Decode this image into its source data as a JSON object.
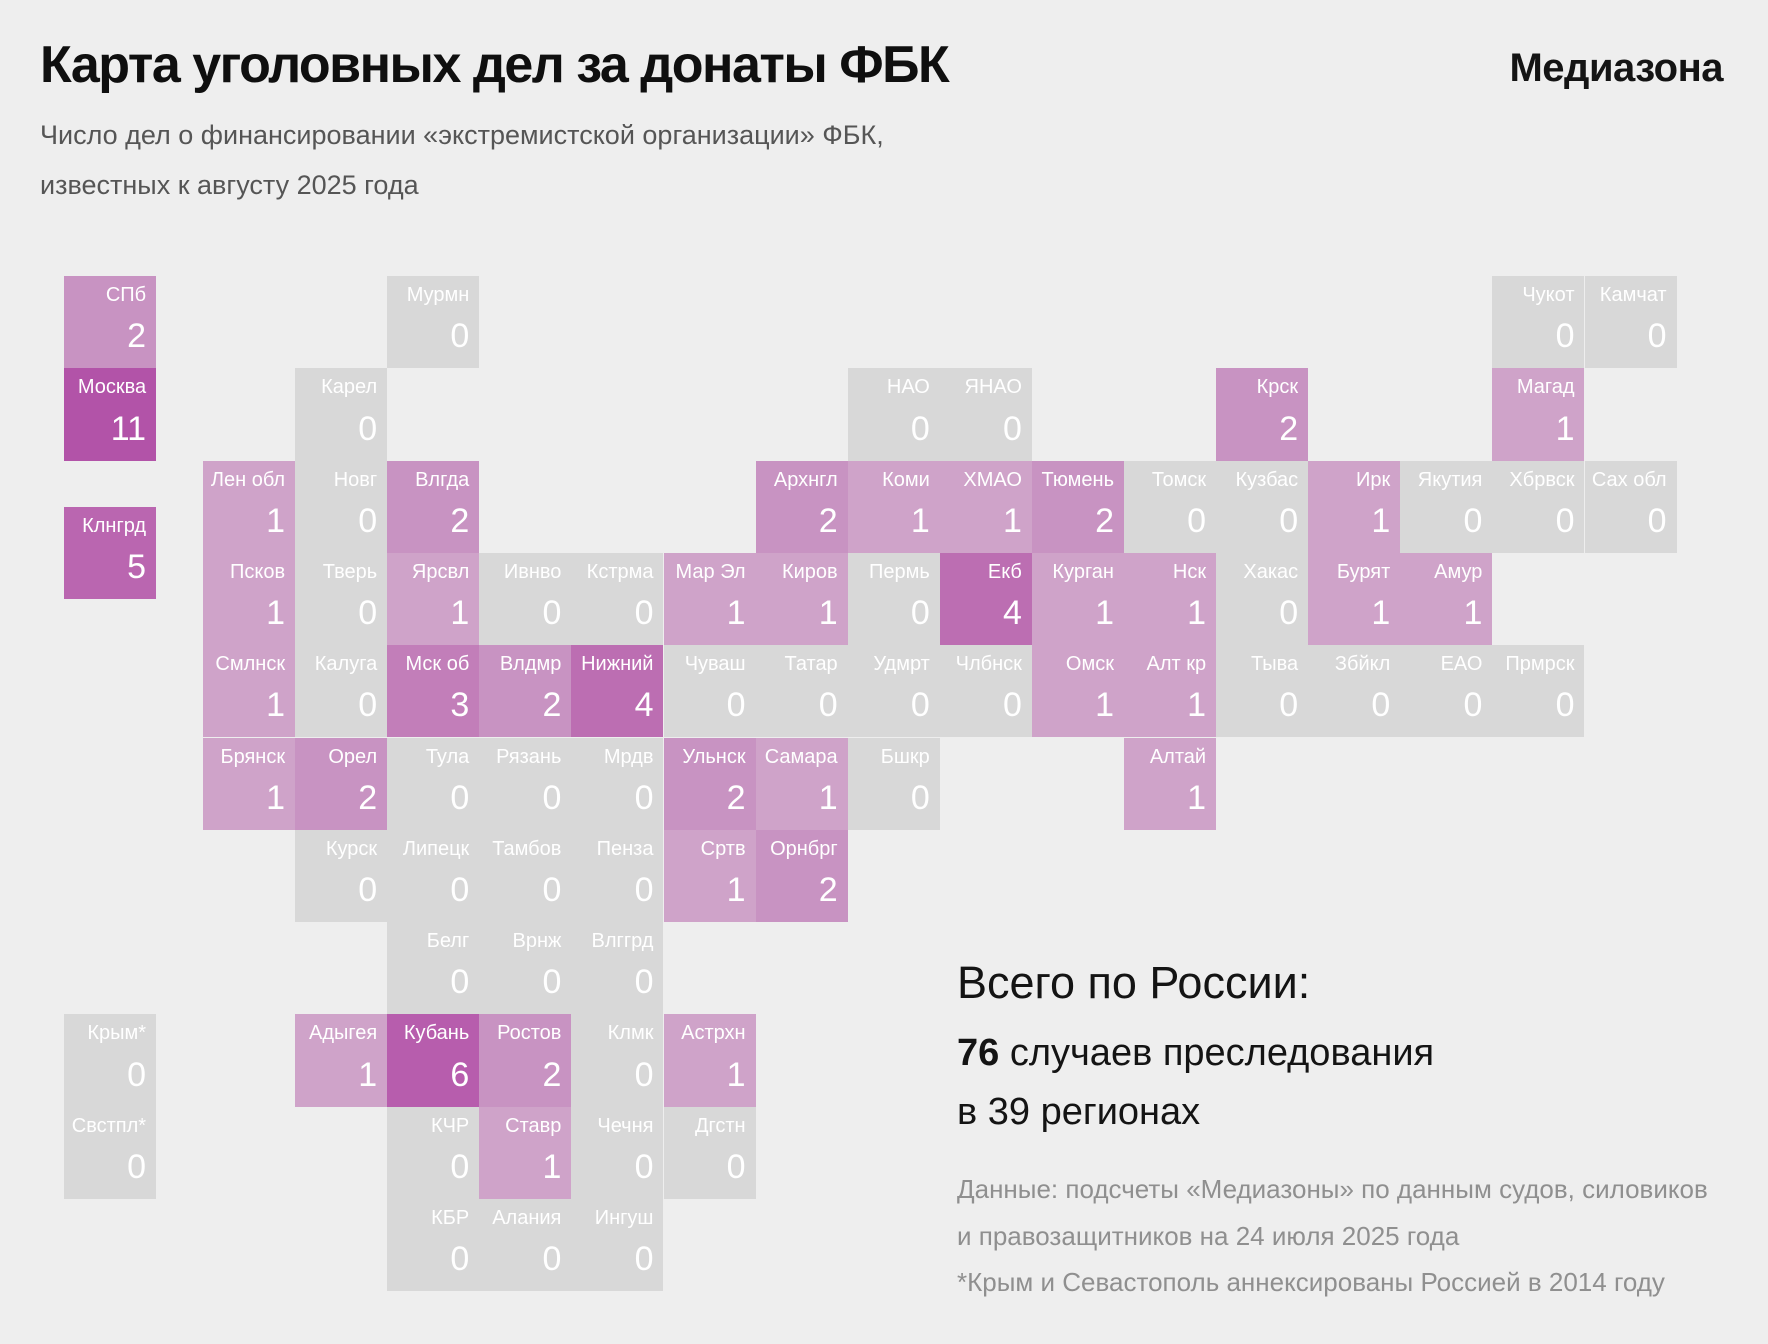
{
  "header": {
    "title": "Карта уголовных дел за донаты ФБК",
    "logo": "Медиазона"
  },
  "subtitle": {
    "line1": "Число дел о финансировании «экстремистской организации» ФБК,",
    "line2": "известных к августу 2025 года"
  },
  "summary": {
    "heading": "Всего по России:",
    "total": "76",
    "total_suffix": " случаев преследования",
    "line2": "в 39 регионах"
  },
  "footnotes": [
    "Данные: подсчеты «Медиазоны» по данным судов, силовиков",
    "и правозащитников на 24 июля 2025 года",
    "*Крым и Севастополь аннексированы Россией в 2014 году"
  ],
  "colors": {
    "background": "#eeeeee",
    "tile_text": "#ffffff",
    "title_text": "#0f0f0f",
    "subtitle_text": "#555555",
    "footnote_text": "#8f8f8f"
  },
  "chart_data": {
    "type": "heatmap",
    "subtype": "tile-grid-cartogram",
    "title": "Карта уголовных дел за донаты ФБК",
    "subtitle": "Число дел о финансировании «экстремистской организации» ФБК, известных к августу 2025 года",
    "total_cases": 76,
    "regions_with_cases": 39,
    "value_color_scale": {
      "0": "#d8d8d8",
      "1": "#cfa3c9",
      "2": "#c893c2",
      "3": "#c27eb9",
      "4": "#bc6eb2",
      "5": "#ba66b0",
      "6": "#b75dad",
      "11": "#b253a8"
    },
    "tiles": [
      {
        "label": "СПб",
        "value": 2,
        "col": "L",
        "row": 0
      },
      {
        "label": "Мурмн",
        "value": 0,
        "col": 2,
        "row": 0
      },
      {
        "label": "Чукот",
        "value": 0,
        "col": 14,
        "row": 0
      },
      {
        "label": "Камчат",
        "value": 0,
        "col": 15,
        "row": 0
      },
      {
        "label": "Москва",
        "value": 11,
        "col": "L",
        "row": 1
      },
      {
        "label": "Карел",
        "value": 0,
        "col": 1,
        "row": 1
      },
      {
        "label": "НАО",
        "value": 0,
        "col": 7,
        "row": 1
      },
      {
        "label": "ЯНАО",
        "value": 0,
        "col": 8,
        "row": 1
      },
      {
        "label": "Крск",
        "value": 2,
        "col": 11,
        "row": 1
      },
      {
        "label": "Магад",
        "value": 1,
        "col": 14,
        "row": 1
      },
      {
        "label": "Лен обл",
        "value": 1,
        "col": 0,
        "row": 2
      },
      {
        "label": "Новг",
        "value": 0,
        "col": 1,
        "row": 2
      },
      {
        "label": "Влгда",
        "value": 2,
        "col": 2,
        "row": 2
      },
      {
        "label": "Архнгл",
        "value": 2,
        "col": 6,
        "row": 2
      },
      {
        "label": "Коми",
        "value": 1,
        "col": 7,
        "row": 2
      },
      {
        "label": "ХМАО",
        "value": 1,
        "col": 8,
        "row": 2
      },
      {
        "label": "Тюмень",
        "value": 2,
        "col": 9,
        "row": 2
      },
      {
        "label": "Томск",
        "value": 0,
        "col": 10,
        "row": 2
      },
      {
        "label": "Кузбас",
        "value": 0,
        "col": 11,
        "row": 2
      },
      {
        "label": "Ирк",
        "value": 1,
        "col": 12,
        "row": 2
      },
      {
        "label": "Якутия",
        "value": 0,
        "col": 13,
        "row": 2
      },
      {
        "label": "Хбрвск",
        "value": 0,
        "col": 14,
        "row": 2
      },
      {
        "label": "Сах обл",
        "value": 0,
        "col": 15,
        "row": 2
      },
      {
        "label": "Клнгрд",
        "value": 5,
        "col": "L",
        "row": 2.5
      },
      {
        "label": "Псков",
        "value": 1,
        "col": 0,
        "row": 3
      },
      {
        "label": "Тверь",
        "value": 0,
        "col": 1,
        "row": 3
      },
      {
        "label": "Ярсвл",
        "value": 1,
        "col": 2,
        "row": 3
      },
      {
        "label": "Ивнво",
        "value": 0,
        "col": 3,
        "row": 3
      },
      {
        "label": "Кстрма",
        "value": 0,
        "col": 4,
        "row": 3
      },
      {
        "label": "Мар Эл",
        "value": 1,
        "col": 5,
        "row": 3
      },
      {
        "label": "Киров",
        "value": 1,
        "col": 6,
        "row": 3
      },
      {
        "label": "Пермь",
        "value": 0,
        "col": 7,
        "row": 3
      },
      {
        "label": "Екб",
        "value": 4,
        "col": 8,
        "row": 3
      },
      {
        "label": "Курган",
        "value": 1,
        "col": 9,
        "row": 3
      },
      {
        "label": "Нск",
        "value": 1,
        "col": 10,
        "row": 3
      },
      {
        "label": "Хакас",
        "value": 0,
        "col": 11,
        "row": 3
      },
      {
        "label": "Бурят",
        "value": 1,
        "col": 12,
        "row": 3
      },
      {
        "label": "Амур",
        "value": 1,
        "col": 13,
        "row": 3
      },
      {
        "label": "Смлнск",
        "value": 1,
        "col": 0,
        "row": 4
      },
      {
        "label": "Калуга",
        "value": 0,
        "col": 1,
        "row": 4
      },
      {
        "label": "Мск об",
        "value": 3,
        "col": 2,
        "row": 4
      },
      {
        "label": "Влдмр",
        "value": 2,
        "col": 3,
        "row": 4
      },
      {
        "label": "Нижний",
        "value": 4,
        "col": 4,
        "row": 4
      },
      {
        "label": "Чуваш",
        "value": 0,
        "col": 5,
        "row": 4
      },
      {
        "label": "Татар",
        "value": 0,
        "col": 6,
        "row": 4
      },
      {
        "label": "Удмрт",
        "value": 0,
        "col": 7,
        "row": 4
      },
      {
        "label": "Члбнск",
        "value": 0,
        "col": 8,
        "row": 4
      },
      {
        "label": "Омск",
        "value": 1,
        "col": 9,
        "row": 4
      },
      {
        "label": "Алт кр",
        "value": 1,
        "col": 10,
        "row": 4
      },
      {
        "label": "Тыва",
        "value": 0,
        "col": 11,
        "row": 4
      },
      {
        "label": "Збйкл",
        "value": 0,
        "col": 12,
        "row": 4
      },
      {
        "label": "ЕАО",
        "value": 0,
        "col": 13,
        "row": 4
      },
      {
        "label": "Прмрск",
        "value": 0,
        "col": 14,
        "row": 4
      },
      {
        "label": "Брянск",
        "value": 1,
        "col": 0,
        "row": 5
      },
      {
        "label": "Орел",
        "value": 2,
        "col": 1,
        "row": 5
      },
      {
        "label": "Тула",
        "value": 0,
        "col": 2,
        "row": 5
      },
      {
        "label": "Рязань",
        "value": 0,
        "col": 3,
        "row": 5
      },
      {
        "label": "Мрдв",
        "value": 0,
        "col": 4,
        "row": 5
      },
      {
        "label": "Ульнск",
        "value": 2,
        "col": 5,
        "row": 5
      },
      {
        "label": "Самара",
        "value": 1,
        "col": 6,
        "row": 5
      },
      {
        "label": "Бшкр",
        "value": 0,
        "col": 7,
        "row": 5
      },
      {
        "label": "Алтай",
        "value": 1,
        "col": 10,
        "row": 5
      },
      {
        "label": "Курск",
        "value": 0,
        "col": 1,
        "row": 6
      },
      {
        "label": "Липецк",
        "value": 0,
        "col": 2,
        "row": 6
      },
      {
        "label": "Тамбов",
        "value": 0,
        "col": 3,
        "row": 6
      },
      {
        "label": "Пенза",
        "value": 0,
        "col": 4,
        "row": 6
      },
      {
        "label": "Сртв",
        "value": 1,
        "col": 5,
        "row": 6
      },
      {
        "label": "Орнбрг",
        "value": 2,
        "col": 6,
        "row": 6
      },
      {
        "label": "Белг",
        "value": 0,
        "col": 2,
        "row": 7
      },
      {
        "label": "Врнж",
        "value": 0,
        "col": 3,
        "row": 7
      },
      {
        "label": "Влггрд",
        "value": 0,
        "col": 4,
        "row": 7
      },
      {
        "label": "Крым*",
        "value": 0,
        "col": "L",
        "row": 8
      },
      {
        "label": "Адыгея",
        "value": 1,
        "col": 1,
        "row": 8
      },
      {
        "label": "Кубань",
        "value": 6,
        "col": 2,
        "row": 8
      },
      {
        "label": "Ростов",
        "value": 2,
        "col": 3,
        "row": 8
      },
      {
        "label": "Клмк",
        "value": 0,
        "col": 4,
        "row": 8
      },
      {
        "label": "Астрхн",
        "value": 1,
        "col": 5,
        "row": 8
      },
      {
        "label": "Свстпл*",
        "value": 0,
        "col": "L",
        "row": 9
      },
      {
        "label": "КЧР",
        "value": 0,
        "col": 2,
        "row": 9
      },
      {
        "label": "Ставр",
        "value": 1,
        "col": 3,
        "row": 9
      },
      {
        "label": "Чечня",
        "value": 0,
        "col": 4,
        "row": 9
      },
      {
        "label": "Дгстн",
        "value": 0,
        "col": 5,
        "row": 9
      },
      {
        "label": "КБР",
        "value": 0,
        "col": 2,
        "row": 10
      },
      {
        "label": "Алания",
        "value": 0,
        "col": 3,
        "row": 10
      },
      {
        "label": "Ингуш",
        "value": 0,
        "col": 4,
        "row": 10
      }
    ]
  }
}
